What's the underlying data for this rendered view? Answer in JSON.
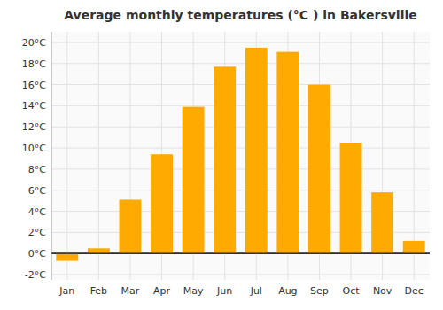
{
  "chart_data": {
    "type": "bar",
    "title": "Average monthly temperatures (°C ) in Bakersville",
    "categories": [
      "Jan",
      "Feb",
      "Mar",
      "Apr",
      "May",
      "Jun",
      "Jul",
      "Aug",
      "Sep",
      "Oct",
      "Nov",
      "Dec"
    ],
    "values": [
      -0.7,
      0.5,
      5.1,
      9.4,
      13.9,
      17.7,
      19.5,
      19.1,
      16.0,
      10.5,
      5.8,
      1.2
    ],
    "color": "#FFAA00",
    "ylim": [
      -2.5,
      21.0
    ],
    "yticks": [
      {
        "value": -2,
        "label": "-2°C"
      },
      {
        "value": 0,
        "label": "0°C"
      },
      {
        "value": 2,
        "label": "2°C"
      },
      {
        "value": 4,
        "label": "4°C"
      },
      {
        "value": 6,
        "label": "6°C"
      },
      {
        "value": 8,
        "label": "8°C"
      },
      {
        "value": 10,
        "label": "10°C"
      },
      {
        "value": 12,
        "label": "12°C"
      },
      {
        "value": 14,
        "label": "14°C"
      },
      {
        "value": 16,
        "label": "16°C"
      },
      {
        "value": 18,
        "label": "18°C"
      },
      {
        "value": 20,
        "label": "20°C"
      }
    ],
    "grid": true
  }
}
